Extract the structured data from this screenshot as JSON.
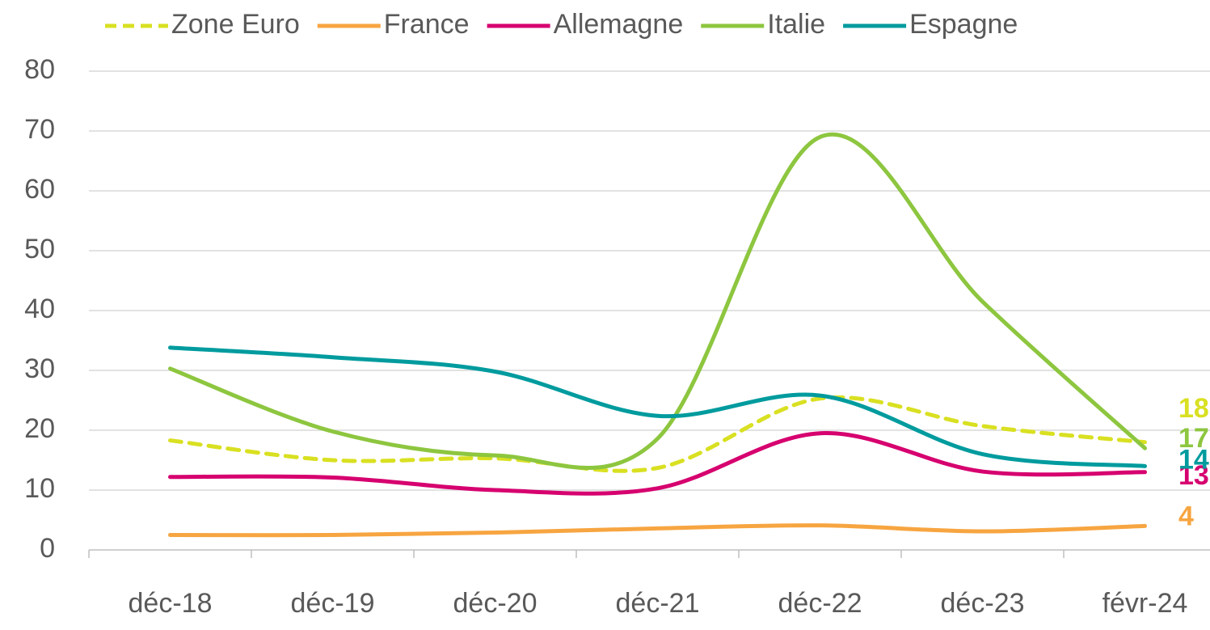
{
  "chart_data": {
    "type": "line",
    "categories": [
      "déc-18",
      "déc-19",
      "déc-20",
      "déc-21",
      "déc-22",
      "déc-23",
      "févr-24"
    ],
    "series": [
      {
        "name": "Zone Euro",
        "color": "#d9e021",
        "dashed": true,
        "values": [
          18.3,
          15,
          15.3,
          13.7,
          25.3,
          20.7,
          18
        ]
      },
      {
        "name": "France",
        "color": "#f7a541",
        "values": [
          2.5,
          2.5,
          2.9,
          3.6,
          4.1,
          3.1,
          4
        ]
      },
      {
        "name": "Allemagne",
        "color": "#d6006f",
        "values": [
          12.2,
          12.1,
          10,
          10.3,
          19.5,
          13.1,
          13
        ]
      },
      {
        "name": "Italie",
        "color": "#8dc63f",
        "values": [
          30.3,
          19.8,
          15.8,
          18.6,
          69,
          41.5,
          17
        ]
      },
      {
        "name": "Espagne",
        "color": "#009b9e",
        "values": [
          33.8,
          32.2,
          29.8,
          22.4,
          25.8,
          16,
          14
        ]
      }
    ],
    "ylim": [
      0,
      80
    ],
    "yticks": [
      0,
      10,
      20,
      30,
      40,
      50,
      60,
      70,
      80
    ],
    "grid": true,
    "legend": "top"
  }
}
